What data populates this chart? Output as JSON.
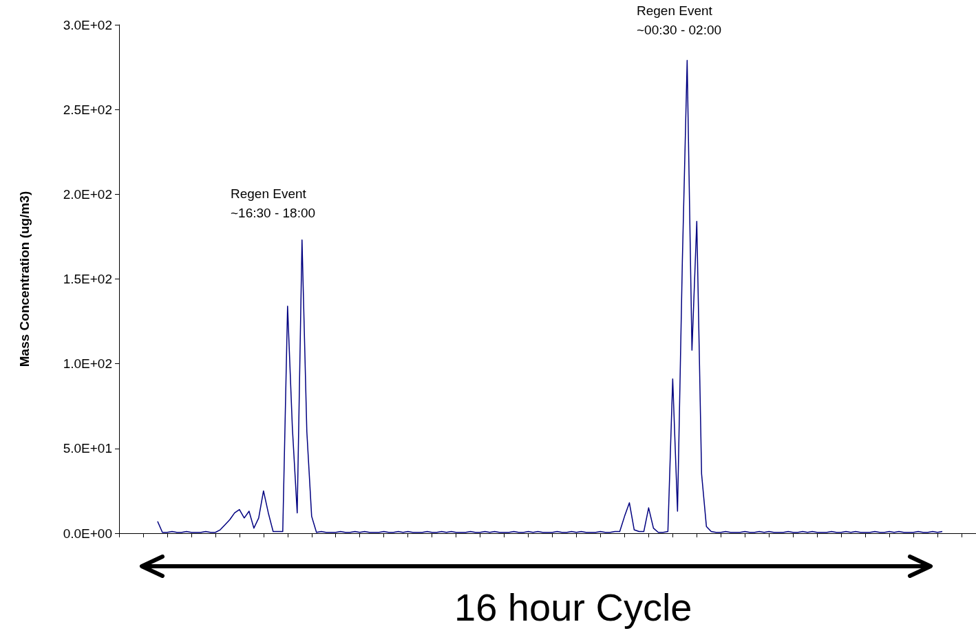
{
  "chart_data": {
    "type": "line",
    "ylabel": "Mass Concentration (ug/m3)",
    "categories": [
      null,
      null,
      null,
      null,
      null,
      null,
      null,
      null,
      null,
      null,
      null,
      null,
      null,
      null,
      null,
      null,
      null,
      null,
      null,
      null,
      null,
      null,
      null,
      null,
      null,
      null,
      null,
      null,
      null,
      null,
      null,
      null,
      null,
      null,
      null,
      null,
      null,
      null,
      null,
      null,
      null,
      null,
      null,
      null,
      null,
      null,
      null,
      null,
      null,
      null,
      null,
      null,
      null,
      null,
      null,
      null,
      null,
      null,
      null,
      null,
      null,
      null,
      null,
      null,
      null,
      null,
      null,
      null,
      null,
      null,
      null,
      null,
      null,
      null,
      null,
      null,
      null,
      null,
      null,
      null,
      null,
      null,
      null,
      null,
      null,
      null,
      null,
      null,
      null,
      null,
      null,
      null,
      null,
      null,
      null,
      null,
      null,
      null,
      null,
      null,
      null,
      null,
      null,
      null,
      null,
      null,
      null,
      null,
      null,
      null,
      null,
      null,
      null,
      null,
      null,
      null,
      null,
      null,
      null,
      null,
      null,
      null,
      null,
      null,
      null,
      null,
      null,
      null,
      null,
      null,
      null,
      null,
      null,
      null,
      null,
      null,
      null,
      null,
      null,
      null,
      null,
      null,
      null,
      null,
      null,
      null,
      null,
      null,
      null,
      null,
      null,
      null,
      null,
      null,
      null,
      null,
      null,
      null,
      null,
      null,
      null,
      null,
      null,
      null,
      null,
      null,
      null,
      null,
      null,
      null,
      null,
      null,
      null,
      null,
      null,
      null,
      null,
      null,
      null
    ],
    "values": [
      null,
      null,
      null,
      null,
      null,
      null,
      null,
      null,
      7,
      0.5,
      0.5,
      1,
      0.5,
      0.5,
      1,
      0.5,
      0.5,
      0.5,
      1,
      0.5,
      0.5,
      2,
      5,
      8,
      12,
      14,
      9,
      13,
      3,
      9,
      25,
      12,
      1,
      1,
      1,
      134,
      62,
      12,
      173,
      60,
      10,
      0.5,
      1,
      0.5,
      0.5,
      0.5,
      1,
      0.5,
      0.5,
      1,
      0.5,
      1,
      0.5,
      0.5,
      0.5,
      1,
      0.5,
      0.5,
      1,
      0.5,
      1,
      0.5,
      0.5,
      0.5,
      1,
      0.5,
      0.5,
      1,
      0.5,
      1,
      0.5,
      0.5,
      0.5,
      1,
      0.5,
      0.5,
      1,
      0.5,
      1,
      0.5,
      0.5,
      0.5,
      1,
      0.5,
      0.5,
      1,
      0.5,
      1,
      0.5,
      0.5,
      0.5,
      1,
      0.5,
      0.5,
      1,
      0.5,
      1,
      0.5,
      0.5,
      0.5,
      1,
      0.5,
      0.5,
      1,
      1,
      10,
      18,
      2,
      1,
      1,
      15,
      3,
      0.5,
      0.5,
      1,
      91,
      13,
      160,
      279,
      108,
      184,
      35,
      4,
      1,
      0.5,
      0.5,
      1,
      0.5,
      0.5,
      0.5,
      1,
      0.5,
      0.5,
      1,
      0.5,
      1,
      0.5,
      0.5,
      0.5,
      1,
      0.5,
      0.5,
      1,
      0.5,
      1,
      0.5,
      0.5,
      0.5,
      1,
      0.5,
      0.5,
      1,
      0.5,
      1,
      0.5,
      0.5,
      0.5,
      1,
      0.5,
      0.5,
      1,
      0.5,
      1,
      0.5,
      0.5,
      0.5,
      1,
      0.5,
      0.5,
      1,
      0.5,
      1,
      null,
      null,
      null,
      null,
      null,
      null,
      null
    ],
    "color": "#000080",
    "ylim": [
      0,
      300
    ],
    "yticks": [
      {
        "value": 0,
        "label": "0.0E+00"
      },
      {
        "value": 50,
        "label": "5.0E+01"
      },
      {
        "value": 100,
        "label": "1.0E+02"
      },
      {
        "value": 150,
        "label": "1.5E+02"
      },
      {
        "value": 200,
        "label": "2.0E+02"
      },
      {
        "value": 250,
        "label": "2.5E+02"
      },
      {
        "value": 300,
        "label": "3.0E+02"
      }
    ],
    "tick_labels": "y",
    "grid": false,
    "annotations": [
      "Regen Event\n~16:30 - 18:00",
      "Regen Event\n~00:30 - 02:00",
      "16 hour Cycle"
    ]
  }
}
